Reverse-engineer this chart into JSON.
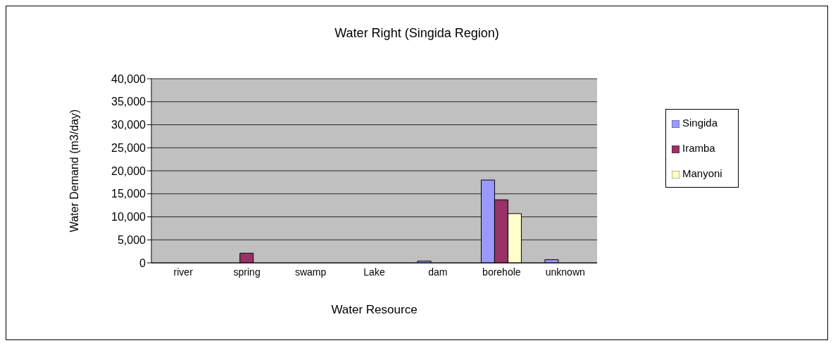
{
  "chart_data": {
    "type": "bar",
    "title": "Water Right (Singida Region)",
    "xlabel": "Water Resource",
    "ylabel": "Water Demand (m3/day)",
    "categories": [
      "river",
      "spring",
      "swamp",
      "Lake",
      "dam",
      "borehole",
      "unknown"
    ],
    "series": [
      {
        "name": "Singida",
        "color": "#9999ff",
        "values": [
          0,
          0,
          0,
          0,
          400,
          18000,
          700
        ]
      },
      {
        "name": "Iramba",
        "color": "#993366",
        "values": [
          0,
          2100,
          0,
          0,
          0,
          13700,
          0
        ]
      },
      {
        "name": "Manyoni",
        "color": "#ffffcc",
        "values": [
          0,
          0,
          0,
          0,
          0,
          10700,
          0
        ]
      }
    ],
    "ylim": [
      0,
      40000
    ],
    "yticks": [
      {
        "value": 0,
        "label": "0"
      },
      {
        "value": 5000,
        "label": "5,000"
      },
      {
        "value": 10000,
        "label": "10,000"
      },
      {
        "value": 15000,
        "label": "15,000"
      },
      {
        "value": 20000,
        "label": "20,000"
      },
      {
        "value": 25000,
        "label": "25,000"
      },
      {
        "value": 30000,
        "label": "30,000"
      },
      {
        "value": 35000,
        "label": "35,000"
      },
      {
        "value": 40000,
        "label": "40,000"
      }
    ],
    "grid": "y",
    "legend": "right"
  }
}
